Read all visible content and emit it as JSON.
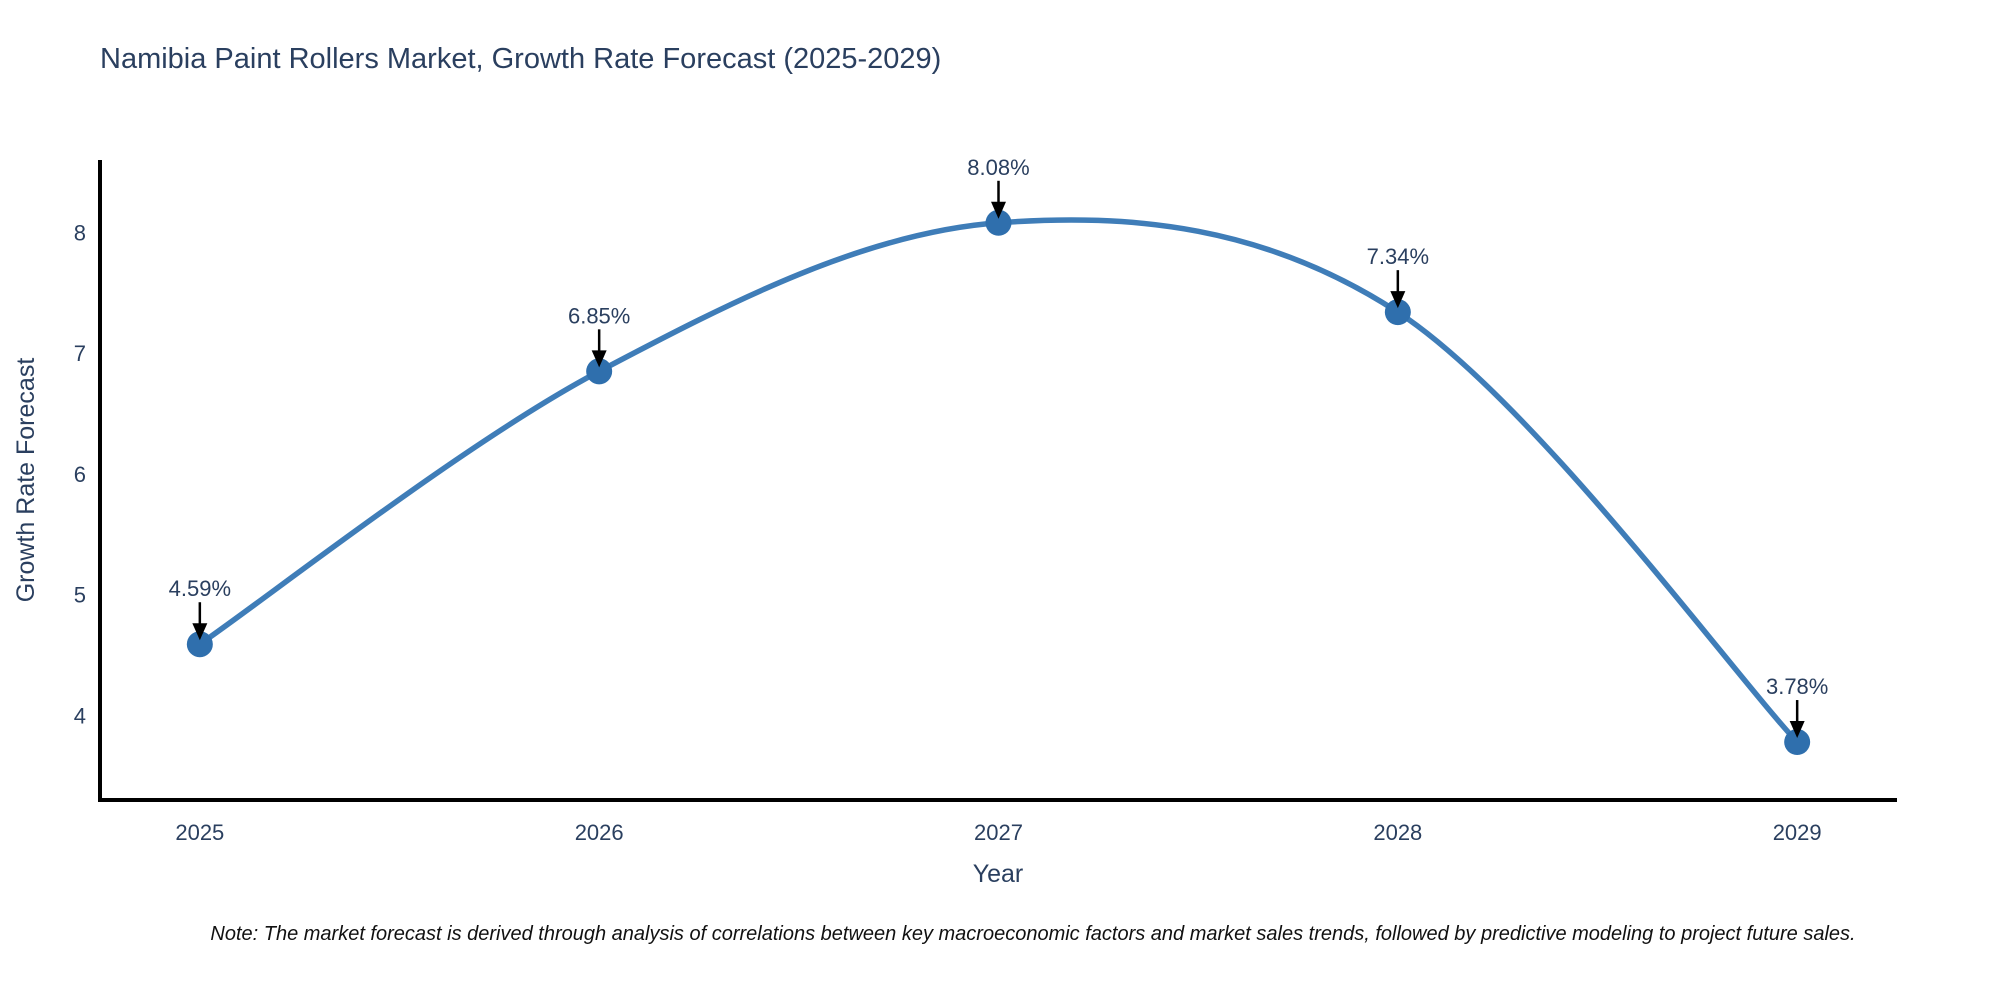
{
  "page": {
    "background": "#ffffff"
  },
  "note": "Note: The market forecast is derived through analysis of correlations between key macroeconomic factors and market sales trends, followed by predictive modeling to project future sales.",
  "chart_data": {
    "type": "line",
    "title": "Namibia Paint Rollers Market, Growth Rate Forecast (2025-2029)",
    "xlabel": "Year",
    "ylabel": "Growth Rate Forecast",
    "x": [
      2025,
      2026,
      2027,
      2028,
      2029
    ],
    "y": [
      4.59,
      6.85,
      8.08,
      7.34,
      3.78
    ],
    "point_labels": [
      "4.59%",
      "6.85%",
      "8.08%",
      "7.34%",
      "3.78%"
    ],
    "x_tick_labels": [
      "2025",
      "2026",
      "2027",
      "2028",
      "2029"
    ],
    "y_ticks": [
      4,
      5,
      6,
      7,
      8
    ],
    "y_tick_labels": [
      "4",
      "5",
      "6",
      "7",
      "8"
    ],
    "xlim": [
      2024.75,
      2029.25
    ],
    "ylim": [
      3.3,
      8.6
    ],
    "line_shape": "spline",
    "grid": false,
    "legend": "none",
    "annotations_arrow": "down-to-point",
    "colors": {
      "line": "#3f7db8",
      "marker": "#2f6fad",
      "arrow": "#000000",
      "axis_line": "#000000",
      "text": "#2a3f5f",
      "note_text": "#111111"
    }
  }
}
